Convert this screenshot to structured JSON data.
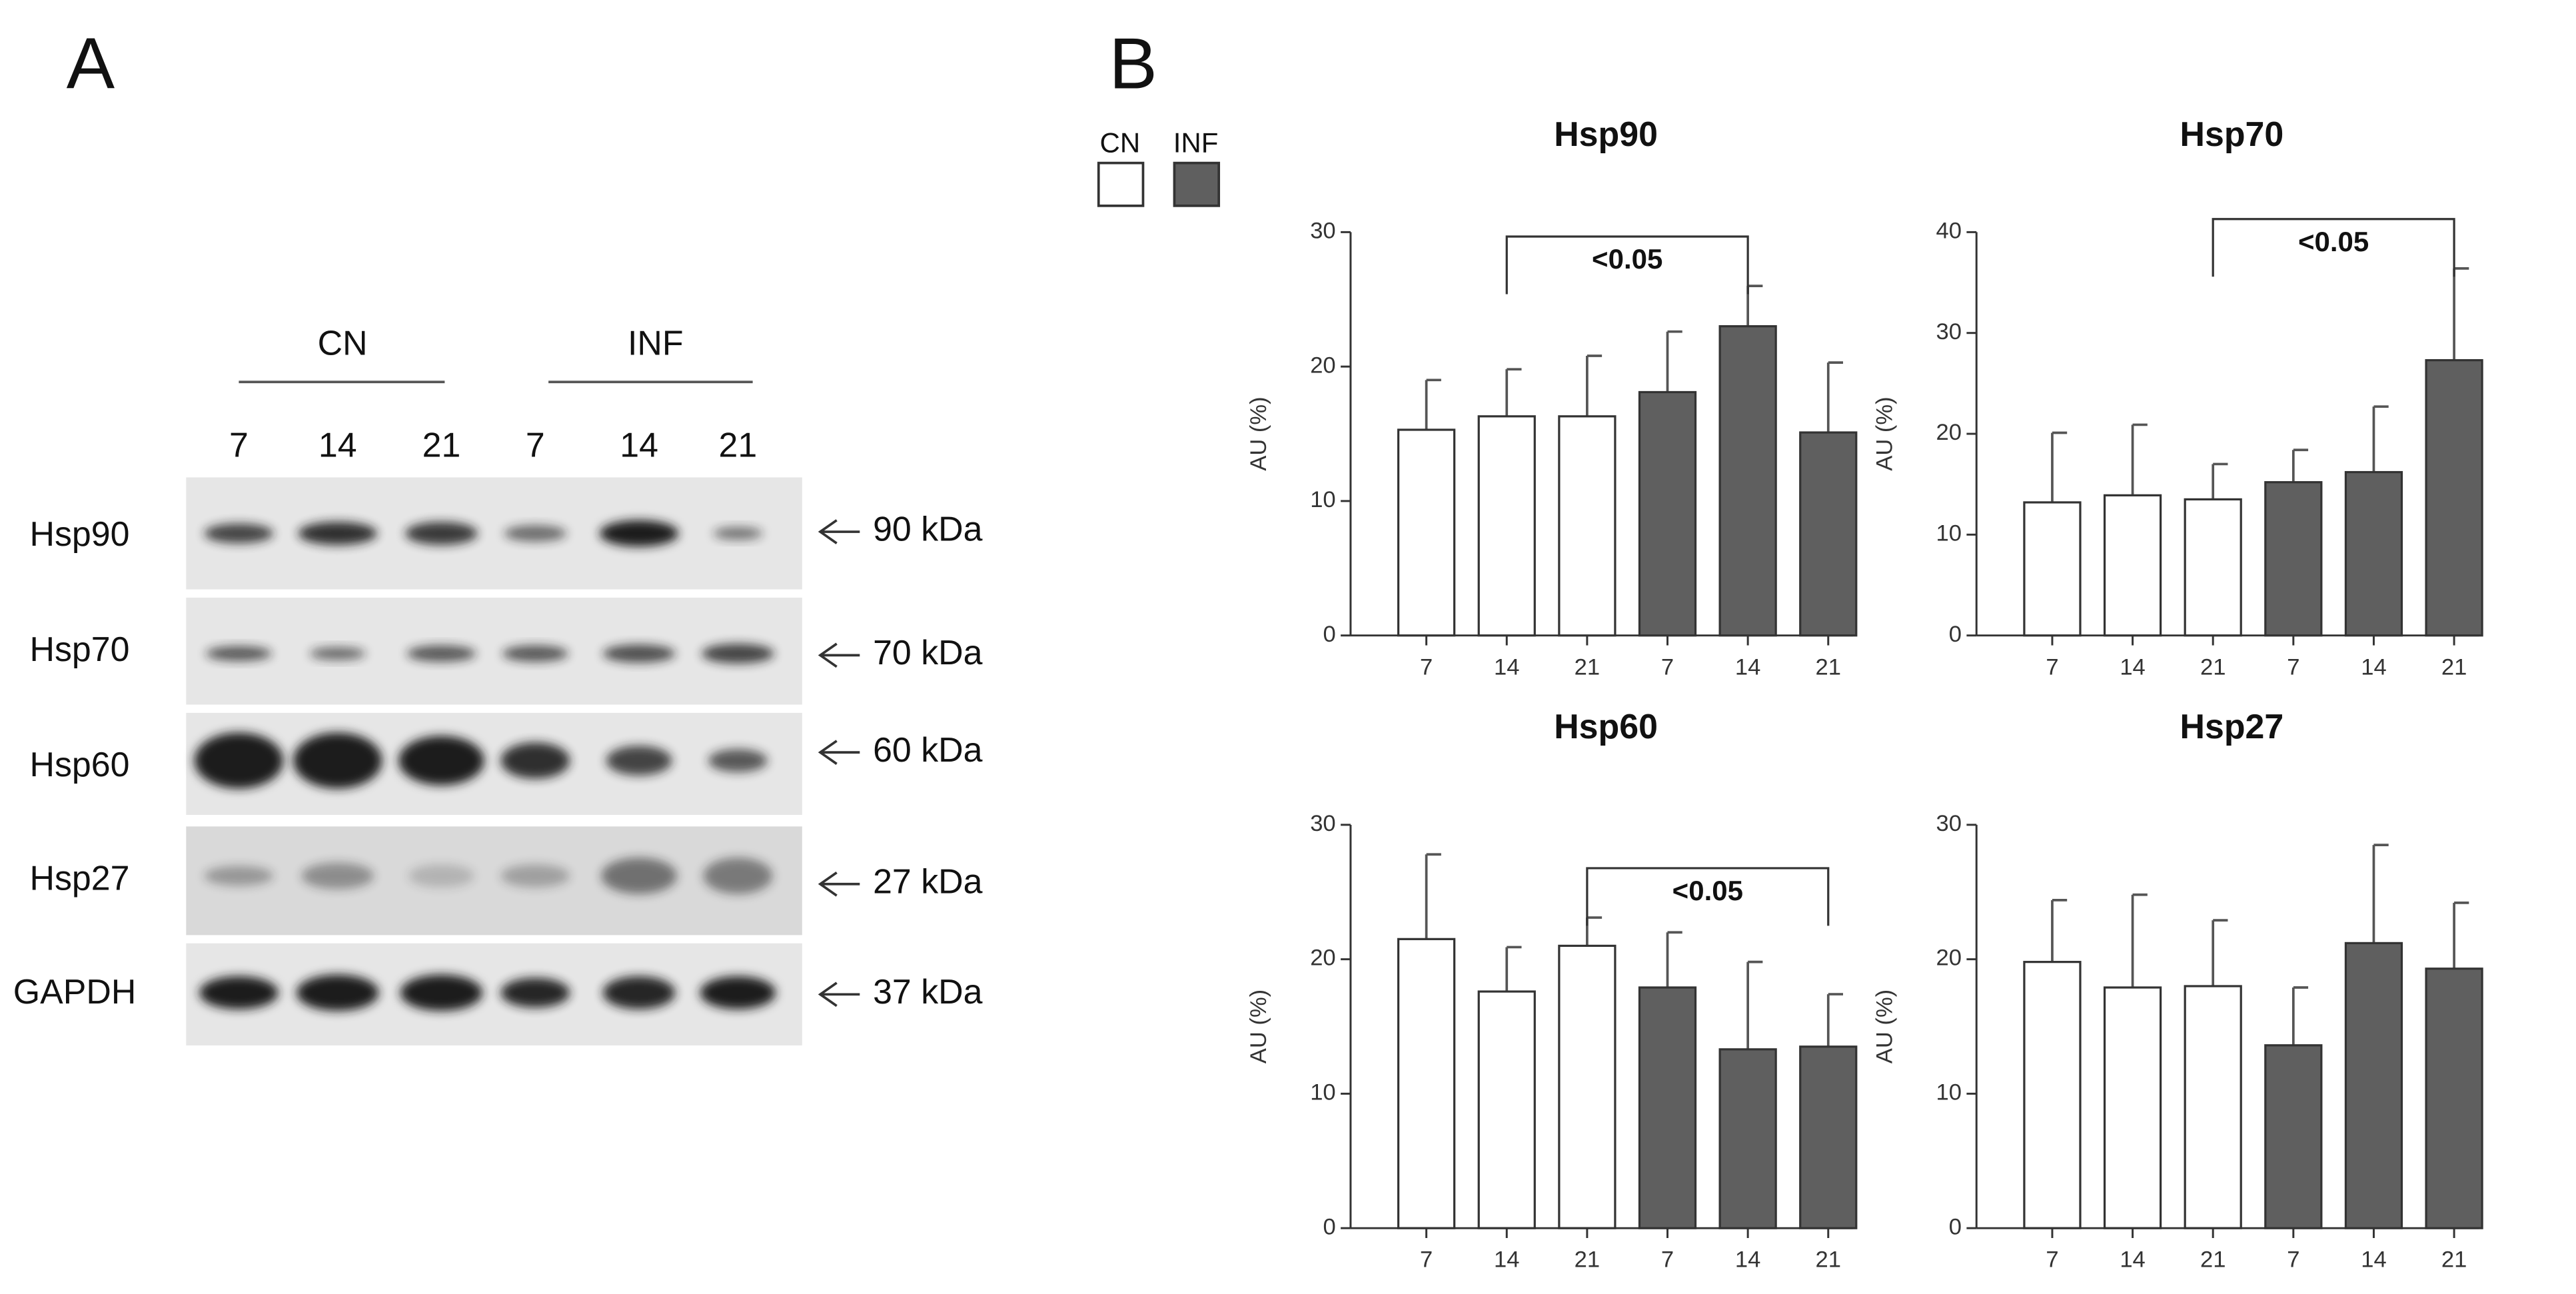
{
  "panel_labels": [
    "A",
    "B"
  ],
  "blot": {
    "groups": [
      "CN",
      "INF"
    ],
    "lanes": [
      "7",
      "14",
      "21",
      "7",
      "14",
      "21"
    ],
    "rows": [
      {
        "label": "Hsp90",
        "size": "90 kDa"
      },
      {
        "label": "Hsp70",
        "size": "70 kDa"
      },
      {
        "label": "Hsp60",
        "size": "60 kDa"
      },
      {
        "label": "Hsp27",
        "size": "27 kDa"
      },
      {
        "label": "GAPDH",
        "size": "37 kDa"
      }
    ]
  },
  "legend": [
    {
      "name": "CN",
      "color": "#ffffff"
    },
    {
      "name": "INF",
      "color": "#5f5f5f"
    }
  ],
  "chart_data": [
    {
      "type": "bar",
      "title": "Hsp90",
      "y_label": "AU (%)",
      "categories": [
        "7",
        "14",
        "21",
        "7",
        "14",
        "21"
      ],
      "values": [
        15.3,
        16.3,
        16.3,
        18.1,
        23.0,
        15.1
      ],
      "errors": [
        3.7,
        3.5,
        4.5,
        4.5,
        3.0,
        5.2
      ],
      "colors": [
        "#ffffff",
        "#ffffff",
        "#ffffff",
        "#5f5f5f",
        "#5f5f5f",
        "#5f5f5f"
      ],
      "ylim": [
        0,
        30
      ],
      "yticks": [
        0,
        10,
        20,
        30
      ],
      "annotations": [
        {
          "text": "<0.05",
          "from": 1,
          "to": 4
        }
      ]
    },
    {
      "type": "bar",
      "title": "Hsp70",
      "y_label": "AU (%)",
      "categories": [
        "7",
        "14",
        "21",
        "7",
        "14",
        "21"
      ],
      "values": [
        13.2,
        13.9,
        13.5,
        15.2,
        16.2,
        27.3
      ],
      "errors": [
        6.9,
        7.0,
        3.5,
        3.2,
        6.5,
        9.1
      ],
      "colors": [
        "#ffffff",
        "#ffffff",
        "#ffffff",
        "#5f5f5f",
        "#5f5f5f",
        "#5f5f5f"
      ],
      "ylim": [
        0,
        40
      ],
      "yticks": [
        0,
        10,
        20,
        30,
        40
      ],
      "annotations": [
        {
          "text": "<0.05",
          "from": 2,
          "to": 5
        }
      ]
    },
    {
      "type": "bar",
      "title": "Hsp60",
      "y_label": "AU (%)",
      "categories": [
        "7",
        "14",
        "21",
        "7",
        "14",
        "21"
      ],
      "values": [
        21.5,
        17.6,
        21.0,
        17.9,
        13.3,
        13.5
      ],
      "errors": [
        6.3,
        3.3,
        2.1,
        4.1,
        6.5,
        3.9
      ],
      "colors": [
        "#ffffff",
        "#ffffff",
        "#ffffff",
        "#5f5f5f",
        "#5f5f5f",
        "#5f5f5f"
      ],
      "ylim": [
        0,
        30
      ],
      "yticks": [
        0,
        10,
        20,
        30
      ],
      "annotations": [
        {
          "text": "<0.05",
          "from": 2,
          "to": 5
        }
      ]
    },
    {
      "type": "bar",
      "title": "Hsp27",
      "y_label": "AU (%)",
      "categories": [
        "7",
        "14",
        "21",
        "7",
        "14",
        "21"
      ],
      "values": [
        19.8,
        17.9,
        18.0,
        13.6,
        21.2,
        19.3
      ],
      "errors": [
        4.6,
        6.9,
        4.9,
        4.3,
        7.3,
        4.9
      ],
      "colors": [
        "#ffffff",
        "#ffffff",
        "#ffffff",
        "#5f5f5f",
        "#5f5f5f",
        "#5f5f5f"
      ],
      "ylim": [
        0,
        30
      ],
      "yticks": [
        0,
        10,
        20,
        30
      ],
      "annotations": []
    }
  ]
}
